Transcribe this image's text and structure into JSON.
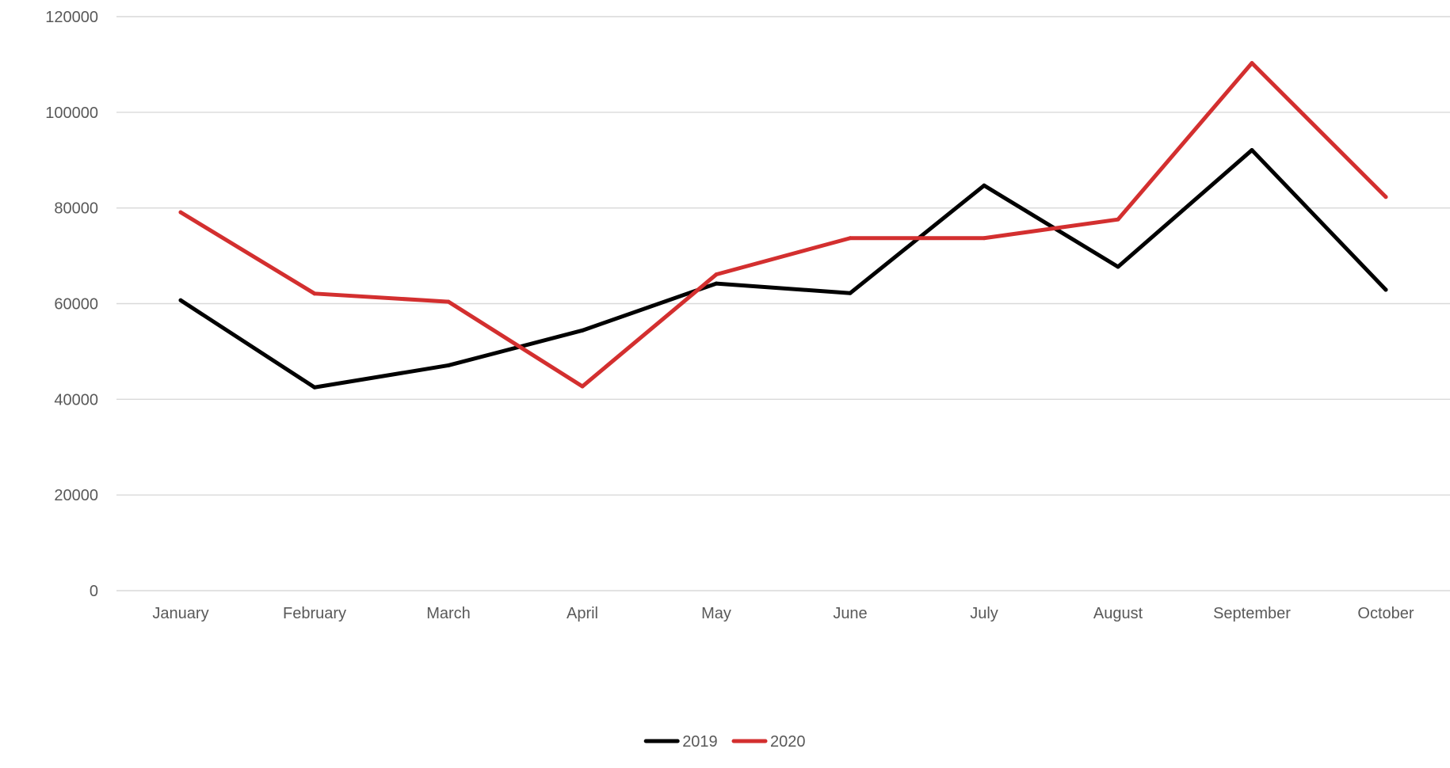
{
  "chart_data": {
    "type": "line",
    "title": "",
    "xlabel": "",
    "ylabel": "",
    "categories": [
      "January",
      "February",
      "March",
      "April",
      "May",
      "June",
      "July",
      "August",
      "September",
      "October"
    ],
    "ylim": [
      0,
      120000
    ],
    "yticks": [
      0,
      20000,
      40000,
      60000,
      80000,
      100000,
      120000
    ],
    "grid": true,
    "legend_position": "bottom",
    "series": [
      {
        "name": "2019",
        "color": "#000000",
        "values": [
          60700,
          42500,
          47100,
          54400,
          64200,
          62200,
          84700,
          67700,
          92100,
          62900
        ]
      },
      {
        "name": "2020",
        "color": "#d32f2f",
        "values": [
          79100,
          62100,
          60400,
          42700,
          66100,
          73700,
          73700,
          77600,
          110300,
          82300
        ]
      }
    ]
  }
}
